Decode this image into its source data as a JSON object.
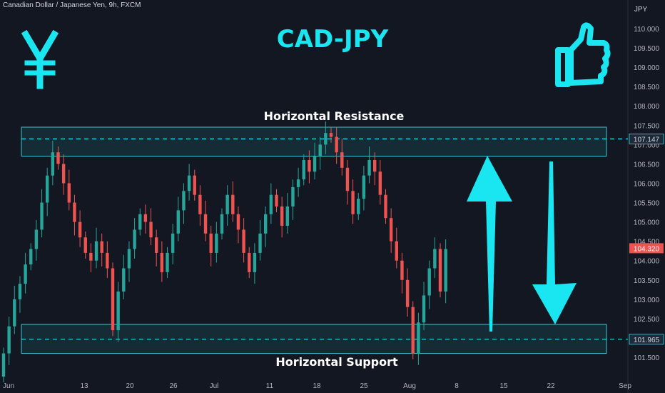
{
  "header": {
    "symbol_line": "Canadian Dollar / Japanese Yen, 9h, FXCM",
    "currency_unit": "JPY",
    "title": "CAD-JPY"
  },
  "icons": {
    "yen": "yen-sign-icon",
    "thumb": "thumbs-up-icon",
    "up_arrow": "up-arrow-icon",
    "down_arrow": "down-arrow-icon"
  },
  "colors": {
    "background": "#131722",
    "accent": "#19e6f0",
    "bull": "#26a69a",
    "bear": "#ef5350",
    "zone_border": "#3ec7d1",
    "zone_fill": "#16303a"
  },
  "annotations": {
    "resistance_label": "Horizontal Resistance",
    "support_label": "Horizontal Support"
  },
  "chart_data": {
    "type": "candlestick",
    "title": "CAD-JPY",
    "y_unit": "JPY",
    "ylim": [
      101.3,
      110.3
    ],
    "y_ticks": [
      "110.000",
      "109.500",
      "109.000",
      "108.500",
      "108.000",
      "107.500",
      "107.000",
      "106.500",
      "106.000",
      "105.500",
      "105.000",
      "104.500",
      "104.000",
      "103.500",
      "103.000",
      "102.500",
      "102.000",
      "101.500"
    ],
    "x_ticks": [
      "Jun",
      "13",
      "20",
      "26",
      "Jul",
      "11",
      "18",
      "25",
      "Aug",
      "8",
      "15",
      "22",
      "Sep"
    ],
    "resistance_zone": {
      "low": 106.7,
      "high": 107.45,
      "level": 107.147
    },
    "support_zone": {
      "low": 101.6,
      "high": 102.35,
      "level": 101.965
    },
    "price_labels": {
      "resistance": "107.147",
      "support": "101.965",
      "last": "104.320"
    },
    "last_price": 104.32,
    "closes": [
      101.6,
      102.3,
      103.0,
      103.4,
      103.9,
      104.3,
      104.8,
      105.5,
      106.2,
      106.8,
      106.5,
      106.0,
      105.5,
      105.0,
      104.6,
      104.2,
      104.0,
      104.5,
      104.2,
      103.8,
      102.2,
      103.2,
      103.8,
      104.3,
      104.8,
      105.2,
      105.0,
      104.6,
      104.2,
      103.7,
      104.2,
      104.7,
      105.3,
      105.8,
      106.2,
      105.7,
      105.2,
      104.7,
      104.2,
      104.7,
      105.2,
      105.7,
      105.2,
      104.8,
      104.2,
      103.7,
      104.2,
      104.7,
      105.2,
      105.7,
      105.4,
      104.9,
      105.4,
      105.9,
      106.1,
      106.6,
      106.3,
      106.7,
      107.0,
      107.3,
      107.2,
      106.8,
      106.4,
      105.8,
      105.2,
      105.6,
      106.2,
      106.6,
      106.3,
      105.7,
      105.1,
      104.5,
      104.0,
      103.5,
      102.8,
      101.6,
      102.4,
      103.1,
      103.8,
      104.3,
      103.2,
      104.3
    ],
    "highs_lows_note": "wicks approximate"
  }
}
